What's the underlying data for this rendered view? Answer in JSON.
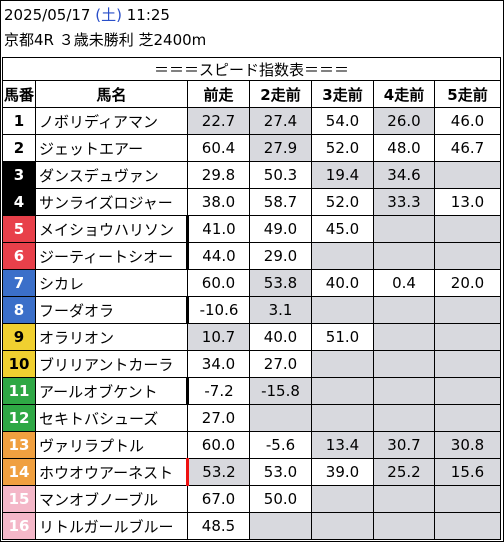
{
  "header": {
    "date": "2025/05/17",
    "dow": "(土)",
    "time": "11:25",
    "race_info": "京都4R ３歳未勝利 芝2400m"
  },
  "table": {
    "title": "＝＝＝スピード指数表＝＝＝",
    "columns": [
      "馬番",
      "馬名",
      "前走",
      "2走前",
      "3走前",
      "4走前",
      "5走前"
    ],
    "frame_colors": {
      "1": "#ffffff",
      "2": "#000000",
      "3": "#e8404a",
      "4": "#3b6fc9",
      "5": "#f0d030",
      "6": "#2fa845",
      "7": "#f0a040",
      "8": "#f4b7c8"
    },
    "rows": [
      {
        "num": "1",
        "frame": "1",
        "name": "ノボリディアマン",
        "vals": [
          "22.7",
          "27.4",
          "54.0",
          "26.0",
          "46.0"
        ],
        "grey": [
          true,
          true,
          false,
          true,
          false
        ],
        "mark": ""
      },
      {
        "num": "2",
        "frame": "1",
        "name": "ジェットエアー",
        "vals": [
          "60.4",
          "27.9",
          "52.0",
          "48.0",
          "46.7"
        ],
        "grey": [
          false,
          true,
          false,
          false,
          false
        ],
        "mark": ""
      },
      {
        "num": "3",
        "frame": "2",
        "name": "ダンスデュヴァン",
        "vals": [
          "29.8",
          "50.3",
          "19.4",
          "34.6",
          ""
        ],
        "grey": [
          false,
          false,
          true,
          true,
          true
        ],
        "mark": ""
      },
      {
        "num": "4",
        "frame": "2",
        "name": "サンライズロジャー",
        "vals": [
          "38.0",
          "58.7",
          "52.0",
          "33.3",
          "13.0"
        ],
        "grey": [
          false,
          false,
          false,
          true,
          false
        ],
        "mark": ""
      },
      {
        "num": "5",
        "frame": "3",
        "name": "メイショウハリソン",
        "vals": [
          "41.0",
          "49.0",
          "45.0",
          "",
          ""
        ],
        "grey": [
          false,
          false,
          false,
          true,
          true
        ],
        "mark": "black"
      },
      {
        "num": "6",
        "frame": "3",
        "name": "ジーティートシオー",
        "vals": [
          "44.0",
          "29.0",
          "",
          "",
          ""
        ],
        "grey": [
          false,
          false,
          true,
          true,
          true
        ],
        "mark": "black"
      },
      {
        "num": "7",
        "frame": "4",
        "name": "シカレ",
        "vals": [
          "60.0",
          "53.8",
          "40.0",
          "0.4",
          "20.0"
        ],
        "grey": [
          false,
          true,
          false,
          false,
          false
        ],
        "mark": ""
      },
      {
        "num": "8",
        "frame": "4",
        "name": "フーダオラ",
        "vals": [
          "-10.6",
          "3.1",
          "",
          "",
          ""
        ],
        "grey": [
          false,
          true,
          true,
          true,
          true
        ],
        "mark": "black"
      },
      {
        "num": "9",
        "frame": "5",
        "name": "オラリオン",
        "vals": [
          "10.7",
          "40.0",
          "51.0",
          "",
          ""
        ],
        "grey": [
          true,
          false,
          false,
          true,
          true
        ],
        "mark": ""
      },
      {
        "num": "10",
        "frame": "5",
        "name": "ブリリアントカーラ",
        "vals": [
          "34.0",
          "27.0",
          "",
          "",
          ""
        ],
        "grey": [
          false,
          false,
          true,
          true,
          true
        ],
        "mark": ""
      },
      {
        "num": "11",
        "frame": "6",
        "name": "アールオブケント",
        "vals": [
          "-7.2",
          "-15.8",
          "",
          "",
          ""
        ],
        "grey": [
          false,
          true,
          true,
          true,
          true
        ],
        "mark": "black"
      },
      {
        "num": "12",
        "frame": "6",
        "name": "セキトバシューズ",
        "vals": [
          "27.0",
          "",
          "",
          "",
          ""
        ],
        "grey": [
          false,
          true,
          true,
          true,
          true
        ],
        "mark": ""
      },
      {
        "num": "13",
        "frame": "7",
        "name": "ヴァリラプトル",
        "vals": [
          "60.0",
          "-5.6",
          "13.4",
          "30.7",
          "30.8"
        ],
        "grey": [
          false,
          false,
          true,
          true,
          true
        ],
        "mark": ""
      },
      {
        "num": "14",
        "frame": "7",
        "name": "ホウオウアーネスト",
        "vals": [
          "53.2",
          "53.0",
          "39.0",
          "25.2",
          "15.6"
        ],
        "grey": [
          true,
          false,
          false,
          true,
          true
        ],
        "mark": "red"
      },
      {
        "num": "15",
        "frame": "8",
        "name": "マンオブノーブル",
        "vals": [
          "67.0",
          "50.0",
          "",
          "",
          ""
        ],
        "grey": [
          false,
          false,
          true,
          true,
          true
        ],
        "mark": ""
      },
      {
        "num": "16",
        "frame": "8",
        "name": "リトルガールブルー",
        "vals": [
          "48.5",
          "",
          "",
          "",
          ""
        ],
        "grey": [
          false,
          true,
          true,
          true,
          true
        ],
        "mark": ""
      }
    ]
  }
}
